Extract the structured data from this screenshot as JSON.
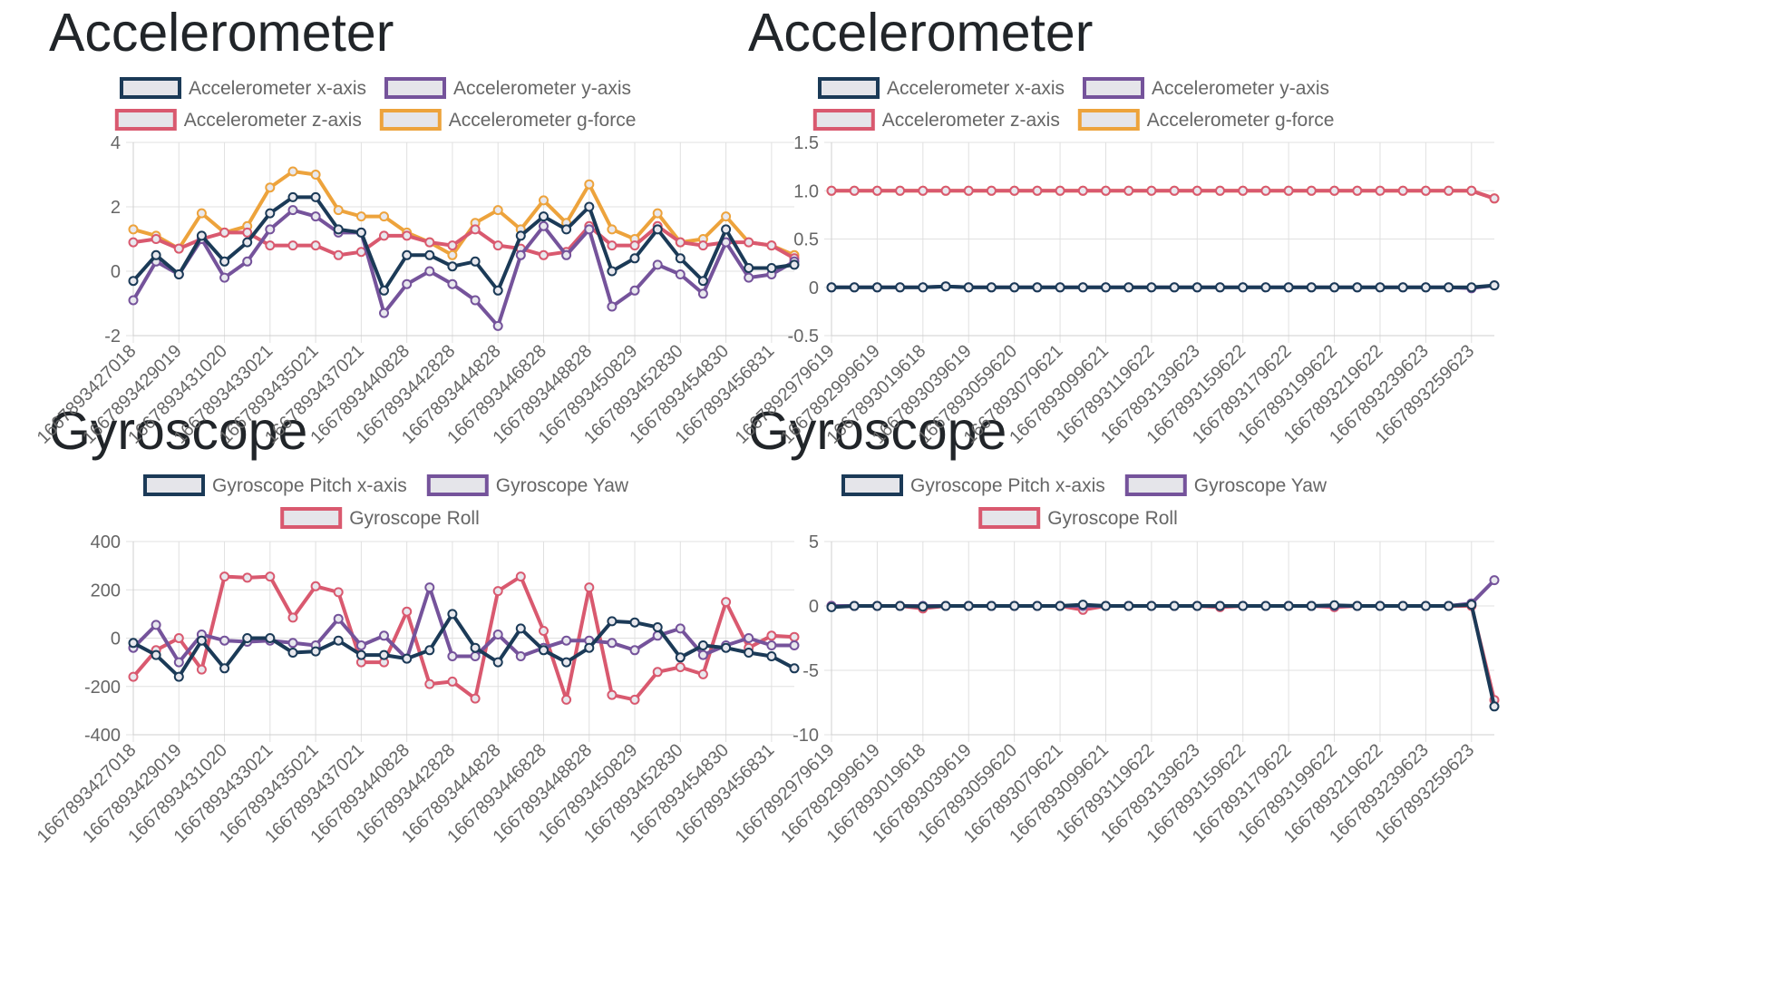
{
  "panels": [
    {
      "title": "Accelerometer"
    },
    {
      "title": "Accelerometer"
    },
    {
      "title": "Gyroscope"
    },
    {
      "title": "Gyroscope"
    }
  ],
  "chart_data": [
    {
      "type": "line",
      "title": "",
      "legend_position": "top",
      "grid": true,
      "ylim": [
        -2,
        4
      ],
      "yticks": [
        4,
        2,
        0,
        -2
      ],
      "x": [
        "1667893427018",
        "1667893428019",
        "1667893429019",
        "1667893430019",
        "1667893431020",
        "1667893432020",
        "1667893433021",
        "1667893434021",
        "1667893435021",
        "1667893436021",
        "1667893437021",
        "1667893438021",
        "1667893440828",
        "1667893441828",
        "1667893442828",
        "1667893443828",
        "1667893444828",
        "1667893445828",
        "1667893446828",
        "1667893447828",
        "1667893448828",
        "1667893449828",
        "1667893450829",
        "1667893451829",
        "1667893452830",
        "1667893453830",
        "1667893454830",
        "1667893455830",
        "1667893456831",
        "1667893457831"
      ],
      "xtick_labels": [
        "1667893427018",
        "",
        "1667893429019",
        "",
        "1667893431020",
        "",
        "1667893433021",
        "",
        "1667893435021",
        "",
        "1667893437021",
        "",
        "1667893440828",
        "",
        "1667893442828",
        "",
        "1667893444828",
        "",
        "1667893446828",
        "",
        "1667893448828",
        "",
        "1667893450829",
        "",
        "1667893452830",
        "",
        "1667893454830",
        "",
        "1667893456831",
        ""
      ],
      "series": [
        {
          "name": "Accelerometer x-axis",
          "color": "#1b3a57",
          "values": [
            -0.3,
            0.5,
            -0.1,
            1.1,
            0.3,
            0.9,
            1.8,
            2.3,
            2.3,
            1.3,
            1.2,
            -0.6,
            0.5,
            0.5,
            0.15,
            0.3,
            -0.6,
            1.1,
            1.7,
            1.3,
            2.0,
            0.0,
            0.4,
            1.3,
            0.4,
            -0.3,
            1.3,
            0.1,
            0.1,
            0.2
          ]
        },
        {
          "name": "Accelerometer y-axis",
          "color": "#75539b",
          "values": [
            -0.9,
            0.3,
            -0.1,
            1.0,
            -0.2,
            0.3,
            1.3,
            1.9,
            1.7,
            1.2,
            1.2,
            -1.3,
            -0.4,
            0.0,
            -0.4,
            -0.9,
            -1.7,
            0.5,
            1.4,
            0.5,
            1.3,
            -1.1,
            -0.6,
            0.2,
            -0.1,
            -0.7,
            0.9,
            -0.2,
            -0.1,
            0.3
          ]
        },
        {
          "name": "Accelerometer z-axis",
          "color": "#d9596f",
          "values": [
            0.9,
            1.0,
            0.7,
            1.0,
            1.2,
            1.2,
            0.8,
            0.8,
            0.8,
            0.5,
            0.6,
            1.1,
            1.1,
            0.9,
            0.8,
            1.3,
            0.8,
            0.7,
            0.5,
            0.6,
            1.4,
            0.8,
            0.8,
            1.4,
            0.9,
            0.8,
            0.9,
            0.9,
            0.8,
            0.4
          ]
        },
        {
          "name": "Accelerometer g-force",
          "color": "#eda33c",
          "values": [
            1.3,
            1.1,
            0.7,
            1.8,
            1.2,
            1.4,
            2.6,
            3.1,
            3.0,
            1.9,
            1.7,
            1.7,
            1.2,
            0.9,
            0.5,
            1.5,
            1.9,
            1.3,
            2.2,
            1.5,
            2.7,
            1.3,
            1.0,
            1.8,
            0.9,
            1.0,
            1.7,
            0.9,
            0.8,
            0.5
          ]
        }
      ]
    },
    {
      "type": "line",
      "title": "",
      "legend_position": "top",
      "grid": true,
      "ylim": [
        -0.5,
        1.5
      ],
      "yticks": [
        "1.5",
        "1.0",
        "0.5",
        "0",
        "-0.5"
      ],
      "x": [
        "1667892979619",
        "1667892989619",
        "1667892999619",
        "1667893009618",
        "1667893019618",
        "1667893029619",
        "1667893039619",
        "1667893049619",
        "1667893059620",
        "1667893069621",
        "1667893079621",
        "1667893089621",
        "1667893099621",
        "1667893109622",
        "1667893119622",
        "1667893129623",
        "1667893139623",
        "1667893149623",
        "1667893159622",
        "1667893169622",
        "1667893179622",
        "1667893189622",
        "1667893199622",
        "1667893209622",
        "1667893219622",
        "1667893229623",
        "1667893239623",
        "1667893249623",
        "1667893259623",
        "1667893269623"
      ],
      "xtick_labels": [
        "1667892979619",
        "",
        "1667892999619",
        "",
        "1667893019618",
        "",
        "1667893039619",
        "",
        "1667893059620",
        "",
        "1667893079621",
        "",
        "1667893099621",
        "",
        "1667893119622",
        "",
        "1667893139623",
        "",
        "1667893159622",
        "",
        "1667893179622",
        "",
        "1667893199622",
        "",
        "1667893219622",
        "",
        "1667893239623",
        "",
        "1667893259623",
        ""
      ],
      "series": [
        {
          "name": "Accelerometer x-axis",
          "color": "#1b3a57",
          "values": [
            0,
            0,
            0,
            0,
            0,
            0.01,
            0,
            0,
            0,
            0,
            0,
            0,
            0,
            0,
            0,
            0,
            0,
            0,
            0,
            0,
            0,
            0,
            0,
            0,
            0,
            0,
            0,
            0,
            0,
            0.02
          ]
        },
        {
          "name": "Accelerometer y-axis",
          "color": "#75539b",
          "values": [
            0,
            0,
            0,
            0,
            0,
            0.01,
            0,
            0,
            0,
            0,
            0,
            0,
            0,
            0,
            0,
            0,
            0,
            0,
            0,
            0,
            0,
            0,
            0,
            0,
            0,
            0,
            0,
            0,
            -0.01,
            0.02
          ]
        },
        {
          "name": "Accelerometer z-axis",
          "color": "#d9596f",
          "values": [
            1,
            1,
            1,
            1,
            1,
            1,
            1,
            1,
            1,
            1,
            1,
            1,
            1,
            1,
            1,
            1,
            1,
            1,
            1,
            1,
            1,
            1,
            1,
            1,
            1,
            1,
            1,
            1,
            1,
            0.92
          ]
        },
        {
          "name": "Accelerometer g-force",
          "color": "#eda33c",
          "values": [
            1,
            1,
            1,
            1,
            1,
            1,
            1,
            1,
            1,
            1,
            1,
            1,
            1,
            1,
            1,
            1,
            1,
            1,
            1,
            1,
            1,
            1,
            1,
            1,
            1,
            1,
            1,
            1,
            1,
            0.92
          ]
        }
      ]
    },
    {
      "type": "line",
      "title": "",
      "legend_position": "top",
      "grid": true,
      "ylim": [
        -400,
        400
      ],
      "yticks": [
        400,
        200,
        0,
        -200,
        -400
      ],
      "x": [
        "1667893427018",
        "1667893428019",
        "1667893429019",
        "1667893430019",
        "1667893431020",
        "1667893432020",
        "1667893433021",
        "1667893434021",
        "1667893435021",
        "1667893436021",
        "1667893437021",
        "1667893438021",
        "1667893440828",
        "1667893441828",
        "1667893442828",
        "1667893443828",
        "1667893444828",
        "1667893445828",
        "1667893446828",
        "1667893447828",
        "1667893448828",
        "1667893449828",
        "1667893450829",
        "1667893451829",
        "1667893452830",
        "1667893453830",
        "1667893454830",
        "1667893455830",
        "1667893456831",
        "1667893457831"
      ],
      "xtick_labels": [
        "1667893427018",
        "",
        "1667893429019",
        "",
        "1667893431020",
        "",
        "1667893433021",
        "",
        "1667893435021",
        "",
        "1667893437021",
        "",
        "1667893440828",
        "",
        "1667893442828",
        "",
        "1667893444828",
        "",
        "1667893446828",
        "",
        "1667893448828",
        "",
        "1667893450829",
        "",
        "1667893452830",
        "",
        "1667893454830",
        "",
        "1667893456831",
        ""
      ],
      "series": [
        {
          "name": "Gyroscope Pitch x-axis",
          "color": "#1b3a57",
          "values": [
            -20,
            -70,
            -160,
            -10,
            -125,
            0,
            0,
            -60,
            -55,
            -10,
            -70,
            -70,
            -85,
            -50,
            100,
            -40,
            -100,
            40,
            -50,
            -100,
            -40,
            70,
            65,
            45,
            -80,
            -30,
            -40,
            -60,
            -75,
            -125
          ]
        },
        {
          "name": "Gyroscope Yaw",
          "color": "#75539b",
          "values": [
            -40,
            55,
            -100,
            15,
            -10,
            -15,
            -10,
            -20,
            -30,
            80,
            -30,
            10,
            -85,
            210,
            -75,
            -75,
            15,
            -75,
            -40,
            -10,
            -10,
            -20,
            -50,
            10,
            40,
            -70,
            -30,
            0,
            -30,
            -30
          ]
        },
        {
          "name": "Gyroscope Roll",
          "color": "#d9596f",
          "values": [
            -160,
            -50,
            0,
            -130,
            255,
            250,
            255,
            85,
            215,
            190,
            -100,
            -100,
            110,
            -190,
            -180,
            -250,
            195,
            255,
            30,
            -255,
            210,
            -235,
            -255,
            -140,
            -120,
            -150,
            150,
            -40,
            10,
            5
          ]
        }
      ]
    },
    {
      "type": "line",
      "title": "",
      "legend_position": "top",
      "grid": true,
      "ylim": [
        -10,
        5
      ],
      "yticks": [
        5,
        0,
        -5,
        -10
      ],
      "x": [
        "1667892979619",
        "1667892989619",
        "1667892999619",
        "1667893009618",
        "1667893019618",
        "1667893029619",
        "1667893039619",
        "1667893049619",
        "1667893059620",
        "1667893069621",
        "1667893079621",
        "1667893089621",
        "1667893099621",
        "1667893109622",
        "1667893119622",
        "1667893129623",
        "1667893139623",
        "1667893149623",
        "1667893159622",
        "1667893169622",
        "1667893179622",
        "1667893189622",
        "1667893199622",
        "1667893209622",
        "1667893219622",
        "1667893229623",
        "1667893239623",
        "1667893249623",
        "1667893259623",
        "1667893269623"
      ],
      "xtick_labels": [
        "1667892979619",
        "",
        "1667892999619",
        "",
        "1667893019618",
        "",
        "1667893039619",
        "",
        "1667893059620",
        "",
        "1667893079621",
        "",
        "1667893099621",
        "",
        "1667893119622",
        "",
        "1667893139623",
        "",
        "1667893159622",
        "",
        "1667893179622",
        "",
        "1667893199622",
        "",
        "1667893219622",
        "",
        "1667893239623",
        "",
        "1667893259623",
        ""
      ],
      "series": [
        {
          "name": "Gyroscope Pitch x-axis",
          "color": "#1b3a57",
          "values": [
            -0.1,
            0,
            0,
            0,
            -0.05,
            0,
            0,
            0,
            0,
            0,
            0,
            0.1,
            0,
            0,
            0,
            0,
            0,
            0,
            0,
            0,
            0,
            0,
            0.05,
            0,
            0,
            0,
            0,
            0,
            0.1,
            -7.8
          ]
        },
        {
          "name": "Gyroscope Yaw",
          "color": "#75539b",
          "values": [
            0,
            0,
            0,
            0,
            0,
            0,
            0,
            0,
            0,
            0,
            0,
            0,
            0,
            0,
            0,
            0,
            0,
            0,
            0,
            0,
            0,
            0,
            0,
            0,
            0,
            0,
            0,
            0,
            0.2,
            2.0
          ]
        },
        {
          "name": "Gyroscope Roll",
          "color": "#d9596f",
          "values": [
            0,
            0,
            0,
            0,
            -0.2,
            0,
            0,
            0,
            0,
            0,
            0,
            -0.3,
            0,
            0,
            0,
            0,
            0,
            -0.1,
            0,
            0,
            0,
            0,
            -0.1,
            0,
            0,
            0,
            0,
            0,
            0,
            -7.3
          ]
        }
      ]
    }
  ]
}
